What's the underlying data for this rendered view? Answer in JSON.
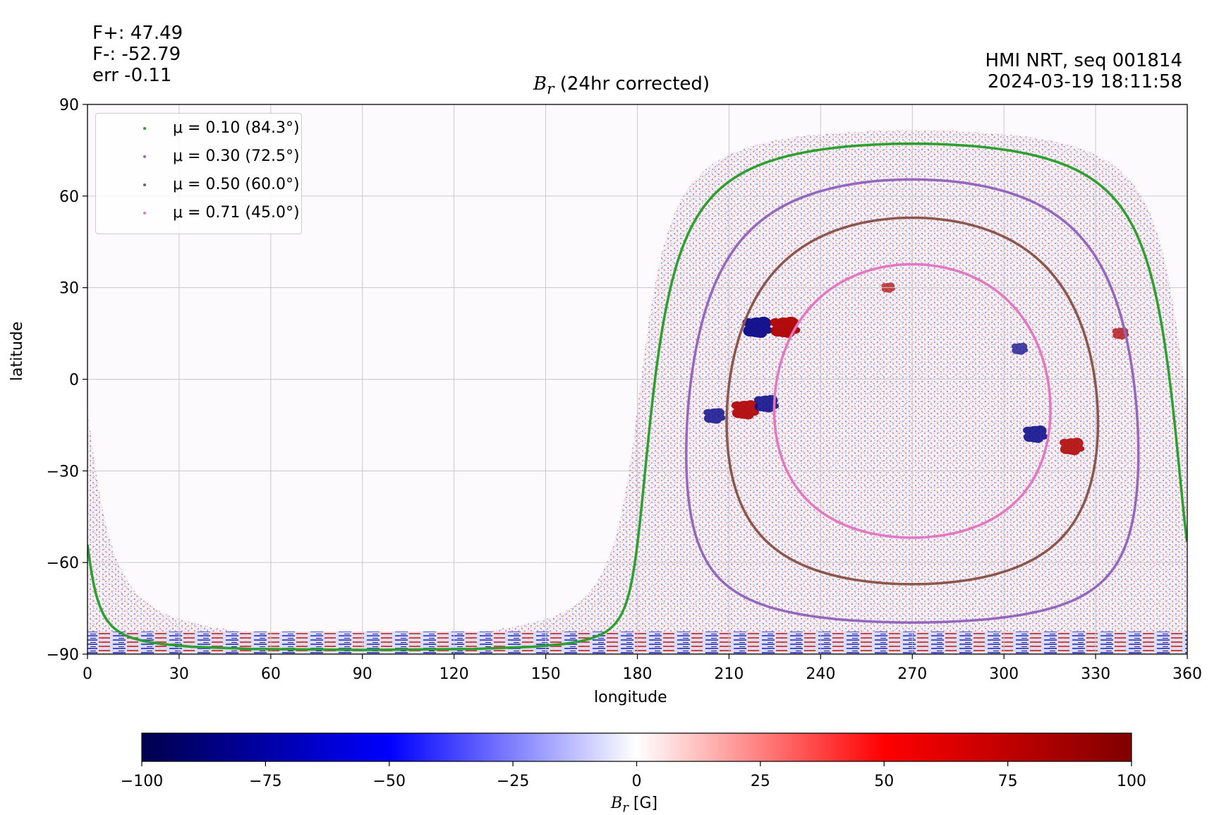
{
  "header_left": {
    "fplus": "F+: 47.49",
    "fminus": "F-: -52.79",
    "err": "err -0.11"
  },
  "header_right": {
    "source": "HMI NRT, seq 001814",
    "datetime": "2024-03-19 18:11:58"
  },
  "chart_data": {
    "type": "heatmap",
    "title_symbol": "B",
    "title_subscript": "r",
    "title_rest": " (24hr corrected)",
    "xlabel": "longitude",
    "ylabel": "latitude",
    "xlim": [
      0,
      360
    ],
    "ylim": [
      -90,
      90
    ],
    "xticks": [
      0,
      30,
      60,
      90,
      120,
      150,
      180,
      210,
      240,
      270,
      300,
      330,
      360
    ],
    "yticks": [
      -90,
      -60,
      -30,
      0,
      30,
      60,
      90
    ],
    "ytick_labels": [
      "−90",
      "−60",
      "−30",
      "0",
      "30",
      "60",
      "90"
    ],
    "grid": true,
    "legend_position": "upper-left",
    "disk_center": {
      "longitude": 270,
      "latitude": -7.1
    },
    "series": [
      {
        "name": "μ = 0.10 (84.3°)",
        "color": "#2ca02c",
        "mu": 0.1,
        "angle_deg": 84.3
      },
      {
        "name": "μ = 0.30 (72.5°)",
        "color": "#9467bd",
        "mu": 0.3,
        "angle_deg": 72.5
      },
      {
        "name": "μ = 0.50 (60.0°)",
        "color": "#8c564b",
        "mu": 0.5,
        "angle_deg": 60.0
      },
      {
        "name": "μ = 0.71 (45.0°)",
        "color": "#e377c2",
        "mu": 0.71,
        "angle_deg": 45.0
      }
    ],
    "active_regions": [
      {
        "longitude": 219,
        "latitude": 17,
        "polarity": "negative",
        "strength": 1.0
      },
      {
        "longitude": 228,
        "latitude": 17,
        "polarity": "positive",
        "strength": 1.0
      },
      {
        "longitude": 215,
        "latitude": -10,
        "polarity": "positive",
        "strength": 0.9
      },
      {
        "longitude": 205,
        "latitude": -12,
        "polarity": "negative",
        "strength": 0.7
      },
      {
        "longitude": 222,
        "latitude": -8,
        "polarity": "negative",
        "strength": 0.8
      },
      {
        "longitude": 310,
        "latitude": -18,
        "polarity": "negative",
        "strength": 0.8
      },
      {
        "longitude": 322,
        "latitude": -22,
        "polarity": "positive",
        "strength": 0.8
      },
      {
        "longitude": 305,
        "latitude": 10,
        "polarity": "negative",
        "strength": 0.5
      },
      {
        "longitude": 262,
        "latitude": 30,
        "polarity": "positive",
        "strength": 0.4
      },
      {
        "longitude": 338,
        "latitude": 15,
        "polarity": "positive",
        "strength": 0.5
      }
    ],
    "colorbar": {
      "label_symbol": "B",
      "label_subscript": "r",
      "label_unit": " [G]",
      "vmin": -100,
      "vmax": 100,
      "colormap": "seismic",
      "ticks": [
        -100,
        -75,
        -50,
        -25,
        0,
        25,
        50,
        75,
        100
      ],
      "tick_labels": [
        "−100",
        "−75",
        "−50",
        "−25",
        "0",
        "25",
        "50",
        "75",
        "100"
      ]
    }
  }
}
